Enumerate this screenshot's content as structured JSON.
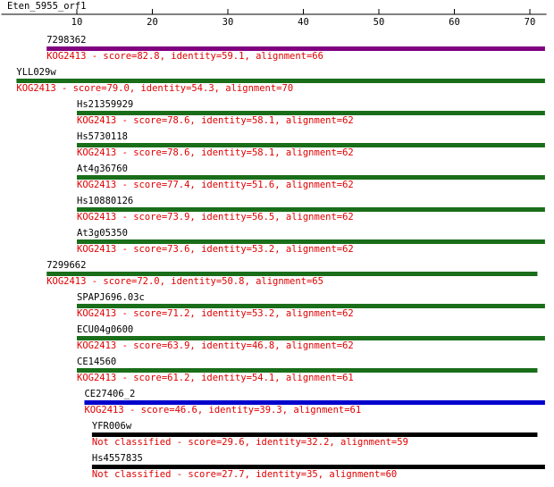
{
  "chart_data": {
    "type": "alignment",
    "title": "Eten_5955_orf1",
    "xlim": [
      0,
      72.2
    ],
    "xticks": [
      10,
      20,
      30,
      40,
      50,
      60,
      70
    ],
    "hits": [
      {
        "name": "7298362",
        "start": 6,
        "end": 72,
        "color": "#800080",
        "label": "KOG2413 - score=82.8, identity=59.1, alignment=66"
      },
      {
        "name": "YLL029w",
        "start": 2,
        "end": 72,
        "color": "#1a6e1a",
        "label": "KOG2413 - score=79.0, identity=54.3, alignment=70"
      },
      {
        "name": "Hs21359929",
        "start": 10,
        "end": 72,
        "color": "#1a6e1a",
        "label": "KOG2413 - score=78.6, identity=58.1, alignment=62"
      },
      {
        "name": "Hs5730118",
        "start": 10,
        "end": 72,
        "color": "#1a6e1a",
        "label": "KOG2413 - score=78.6, identity=58.1, alignment=62"
      },
      {
        "name": "At4g36760",
        "start": 10,
        "end": 72,
        "color": "#1a6e1a",
        "label": "KOG2413 - score=77.4, identity=51.6, alignment=62"
      },
      {
        "name": "Hs10880126",
        "start": 10,
        "end": 72,
        "color": "#1a6e1a",
        "label": "KOG2413 - score=73.9, identity=56.5, alignment=62"
      },
      {
        "name": "At3g05350",
        "start": 10,
        "end": 72,
        "color": "#1a6e1a",
        "label": "KOG2413 - score=73.6, identity=53.2, alignment=62"
      },
      {
        "name": "7299662",
        "start": 6,
        "end": 71,
        "color": "#1a6e1a",
        "label": "KOG2413 - score=72.0, identity=50.8, alignment=65"
      },
      {
        "name": "SPAPJ696.03c",
        "start": 10,
        "end": 72,
        "color": "#1a6e1a",
        "label": "KOG2413 - score=71.2, identity=53.2, alignment=62"
      },
      {
        "name": "ECU04g0600",
        "start": 10,
        "end": 72,
        "color": "#1a6e1a",
        "label": "KOG2413 - score=63.9, identity=46.8, alignment=62"
      },
      {
        "name": "CE14560",
        "start": 10,
        "end": 71,
        "color": "#1a6e1a",
        "label": "KOG2413 - score=61.2, identity=54.1, alignment=61"
      },
      {
        "name": "CE27406_2",
        "start": 11,
        "end": 72,
        "color": "#0000cc",
        "label": "KOG2413 - score=46.6, identity=39.3, alignment=61"
      },
      {
        "name": "YFR006w",
        "start": 12,
        "end": 71,
        "color": "#000000",
        "label": "Not classified - score=29.6, identity=32.2, alignment=59"
      },
      {
        "name": "Hs4557835",
        "start": 12,
        "end": 72,
        "color": "#000000",
        "label": "Not classified - score=27.7, identity=35, alignment=60"
      }
    ]
  }
}
